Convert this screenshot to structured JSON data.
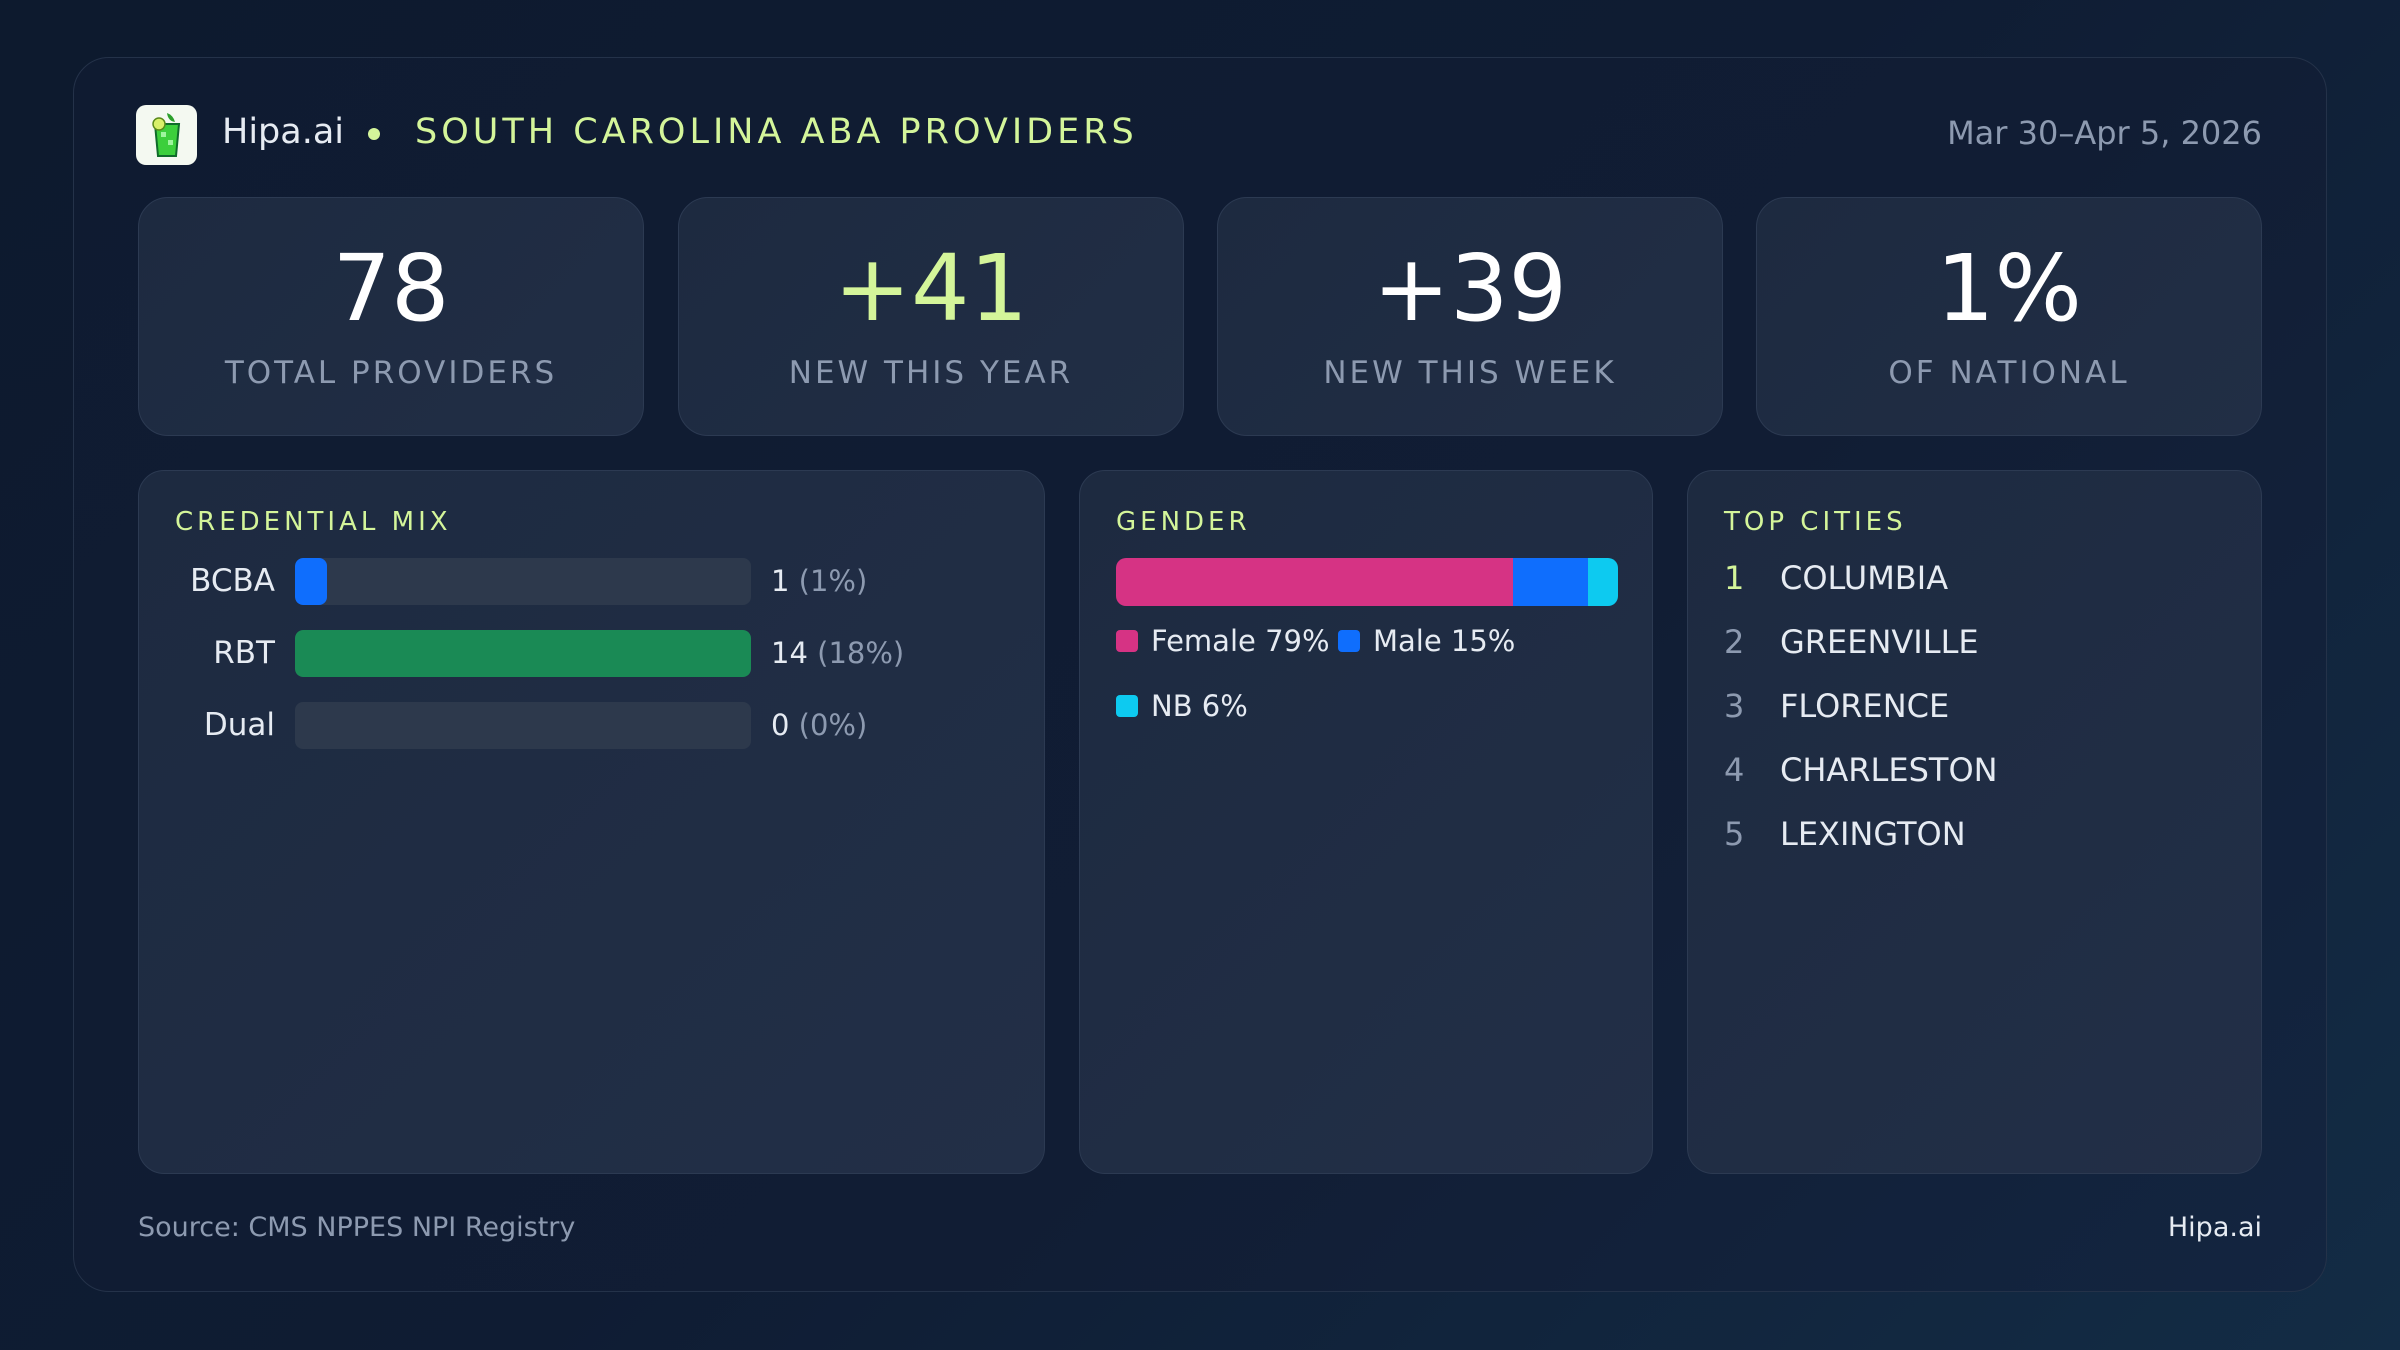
{
  "header": {
    "brand": "Hipa.ai",
    "title": "SOUTH CAROLINA ABA PROVIDERS",
    "date_range": "Mar 30–Apr 5, 2026"
  },
  "stats": [
    {
      "value": "78",
      "label": "TOTAL PROVIDERS"
    },
    {
      "value": "+41",
      "label": "NEW THIS YEAR"
    },
    {
      "value": "+39",
      "label": "NEW THIS WEEK"
    },
    {
      "value": "1%",
      "label": "OF NATIONAL"
    }
  ],
  "credential_mix": {
    "heading": "CREDENTIAL MIX",
    "items": [
      {
        "label": "BCBA",
        "count": "1",
        "pct": "(1%)",
        "fill_fraction": 0.07,
        "color": "#0f6efd"
      },
      {
        "label": "RBT",
        "count": "14",
        "pct": "(18%)",
        "fill_fraction": 1.0,
        "color": "#1a8a55"
      },
      {
        "label": "Dual",
        "count": "0",
        "pct": "(0%)",
        "fill_fraction": 0,
        "color": "#0f6efd"
      }
    ]
  },
  "gender": {
    "heading": "GENDER",
    "segments": [
      {
        "label": "Female 79%",
        "percent": 79,
        "color": "#d63384"
      },
      {
        "label": "Male 15%",
        "percent": 15,
        "color": "#0f6efd"
      },
      {
        "label": "NB 6%",
        "percent": 6,
        "color": "#0dcaf0"
      }
    ]
  },
  "top_cities": {
    "heading": "TOP CITIES",
    "items": [
      {
        "rank": "1",
        "name": "COLUMBIA"
      },
      {
        "rank": "2",
        "name": "GREENVILLE"
      },
      {
        "rank": "3",
        "name": "FLORENCE"
      },
      {
        "rank": "4",
        "name": "CHARLESTON"
      },
      {
        "rank": "5",
        "name": "LEXINGTON"
      }
    ]
  },
  "footer": {
    "source": "Source: CMS NPPES NPI Registry",
    "brand": "Hipa.ai"
  },
  "colors": {
    "accent": "#d4f59a",
    "muted": "#8d9ab0"
  }
}
